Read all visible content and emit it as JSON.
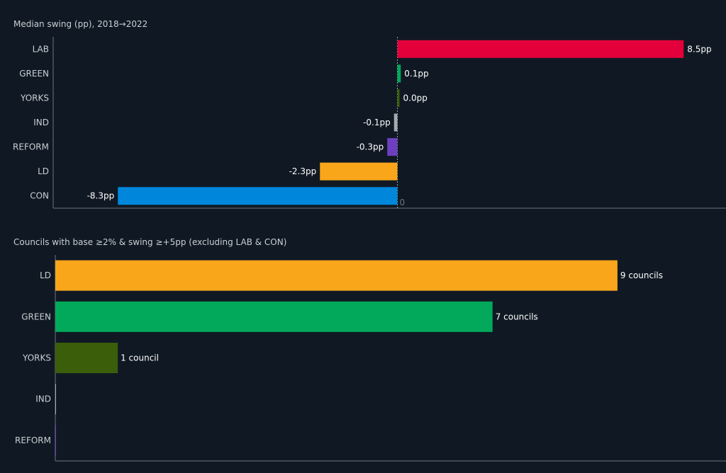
{
  "chart_data": [
    {
      "type": "bar",
      "orientation": "horizontal",
      "title": "Median swing (pp), 2018→2022",
      "categories": [
        "LAB",
        "GREEN",
        "YORKS",
        "IND",
        "REFORM",
        "LD",
        "CON"
      ],
      "values": [
        8.5,
        0.1,
        0.0,
        -0.1,
        -0.3,
        -2.3,
        -8.3
      ],
      "value_labels": [
        "8.5pp",
        "0.1pp",
        "0.0pp",
        "-0.1pp",
        "-0.3pp",
        "-2.3pp",
        "-8.3pp"
      ],
      "colors": [
        "#e4003b",
        "#02a95b",
        "#3a5e0a",
        "#a3aab1",
        "#6d3fc0",
        "#faa61a",
        "#0087dc"
      ],
      "xlim": [
        -8.3,
        8.5
      ],
      "zero_label": "0",
      "grid": false
    },
    {
      "type": "bar",
      "orientation": "horizontal",
      "title": "Councils with base ≥2% & swing ≥+5pp (excluding LAB & CON)",
      "categories": [
        "LD",
        "GREEN",
        "YORKS",
        "IND",
        "REFORM"
      ],
      "values": [
        9,
        7,
        1,
        0,
        0
      ],
      "value_labels": [
        "9 councils",
        "7 councils",
        "1 council",
        "",
        ""
      ],
      "colors": [
        "#faa61a",
        "#02a95b",
        "#3a5e0a",
        "#a3aab1",
        "#6d3fc0"
      ],
      "xlim": [
        0,
        10.2
      ],
      "grid": false
    }
  ]
}
